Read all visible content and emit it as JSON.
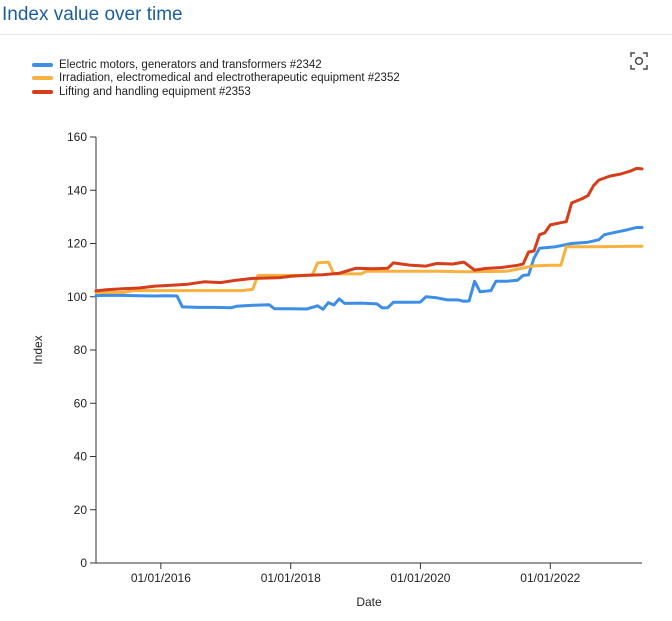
{
  "header": {
    "title": "Index value over time"
  },
  "focus_button": {
    "icon": "focus-mode-icon"
  },
  "chart_data": {
    "type": "line",
    "xlabel": "Date",
    "ylabel": "Index",
    "ylim": [
      0,
      160
    ],
    "yticks": [
      0,
      20,
      40,
      60,
      80,
      100,
      120,
      140,
      160
    ],
    "xlim": [
      "2015-01-01",
      "2023-06-01"
    ],
    "xticks": [
      {
        "value": "2016-01-01",
        "label": "01/01/2016"
      },
      {
        "value": "2018-01-01",
        "label": "01/01/2018"
      },
      {
        "value": "2020-01-01",
        "label": "01/01/2020"
      },
      {
        "value": "2022-01-01",
        "label": "01/01/2022"
      }
    ],
    "grid": false,
    "legend_position": "top-left",
    "series": [
      {
        "name": "Electric motors, generators and transformers #2342",
        "color": "#3e8ee8",
        "points": [
          [
            "2015-01-01",
            100.4
          ],
          [
            "2015-03-01",
            100.6
          ],
          [
            "2015-06-01",
            100.5
          ],
          [
            "2015-09-01",
            100.4
          ],
          [
            "2015-12-01",
            100.3
          ],
          [
            "2016-02-01",
            100.4
          ],
          [
            "2016-04-01",
            100.3
          ],
          [
            "2016-05-01",
            96.2
          ],
          [
            "2016-08-01",
            96.0
          ],
          [
            "2016-11-01",
            96.0
          ],
          [
            "2017-02-01",
            95.9
          ],
          [
            "2017-03-01",
            96.4
          ],
          [
            "2017-06-01",
            96.8
          ],
          [
            "2017-09-01",
            97.0
          ],
          [
            "2017-10-01",
            95.5
          ],
          [
            "2018-01-01",
            95.5
          ],
          [
            "2018-04-01",
            95.4
          ],
          [
            "2018-06-01",
            96.6
          ],
          [
            "2018-07-01",
            95.3
          ],
          [
            "2018-08-01",
            97.8
          ],
          [
            "2018-09-01",
            96.9
          ],
          [
            "2018-10-01",
            99.2
          ],
          [
            "2018-11-01",
            97.5
          ],
          [
            "2019-02-01",
            97.6
          ],
          [
            "2019-05-01",
            97.3
          ],
          [
            "2019-06-01",
            95.8
          ],
          [
            "2019-07-01",
            95.9
          ],
          [
            "2019-08-01",
            97.9
          ],
          [
            "2019-11-01",
            97.9
          ],
          [
            "2020-01-01",
            98.0
          ],
          [
            "2020-02-01",
            100.0
          ],
          [
            "2020-04-01",
            99.6
          ],
          [
            "2020-06-01",
            98.8
          ],
          [
            "2020-08-01",
            98.8
          ],
          [
            "2020-09-01",
            98.3
          ],
          [
            "2020-10-01",
            98.4
          ],
          [
            "2020-11-01",
            105.8
          ],
          [
            "2020-12-01",
            101.9
          ],
          [
            "2021-02-01",
            102.3
          ],
          [
            "2021-03-01",
            105.8
          ],
          [
            "2021-05-01",
            105.8
          ],
          [
            "2021-07-01",
            106.2
          ],
          [
            "2021-08-01",
            108.0
          ],
          [
            "2021-09-01",
            108.2
          ],
          [
            "2021-10-01",
            114.5
          ],
          [
            "2021-11-01",
            118.2
          ],
          [
            "2022-02-01",
            118.8
          ],
          [
            "2022-05-01",
            120.0
          ],
          [
            "2022-08-01",
            120.5
          ],
          [
            "2022-10-01",
            121.4
          ],
          [
            "2022-11-01",
            123.3
          ],
          [
            "2023-01-01",
            124.2
          ],
          [
            "2023-03-01",
            125.0
          ],
          [
            "2023-05-01",
            126.0
          ],
          [
            "2023-06-01",
            126.0
          ]
        ]
      },
      {
        "name": "Irradiation, electromedical and electrotherapeutic equipment #2352",
        "color": "#f7b13e",
        "points": [
          [
            "2015-01-01",
            101.6
          ],
          [
            "2015-06-01",
            101.6
          ],
          [
            "2015-08-01",
            102.3
          ],
          [
            "2016-06-01",
            102.3
          ],
          [
            "2017-04-01",
            102.3
          ],
          [
            "2017-06-01",
            102.8
          ],
          [
            "2017-07-01",
            108.0
          ],
          [
            "2018-05-01",
            108.0
          ],
          [
            "2018-06-01",
            112.7
          ],
          [
            "2018-08-01",
            113.0
          ],
          [
            "2018-09-01",
            108.6
          ],
          [
            "2019-02-01",
            108.6
          ],
          [
            "2019-03-01",
            109.6
          ],
          [
            "2020-04-01",
            109.6
          ],
          [
            "2020-09-01",
            109.4
          ],
          [
            "2021-02-01",
            109.5
          ],
          [
            "2021-05-01",
            109.6
          ],
          [
            "2021-10-01",
            111.6
          ],
          [
            "2022-01-01",
            111.8
          ],
          [
            "2022-03-01",
            111.8
          ],
          [
            "2022-04-01",
            118.8
          ],
          [
            "2022-09-01",
            118.8
          ],
          [
            "2023-06-01",
            119.0
          ]
        ]
      },
      {
        "name": "Lifting and handling equipment #2353",
        "color": "#d63d1a",
        "points": [
          [
            "2015-01-01",
            102.2
          ],
          [
            "2015-03-01",
            102.6
          ],
          [
            "2015-06-01",
            103.0
          ],
          [
            "2015-09-01",
            103.3
          ],
          [
            "2015-12-01",
            104.0
          ],
          [
            "2016-03-01",
            104.3
          ],
          [
            "2016-06-01",
            104.7
          ],
          [
            "2016-09-01",
            105.6
          ],
          [
            "2016-12-01",
            105.3
          ],
          [
            "2017-03-01",
            106.2
          ],
          [
            "2017-06-01",
            106.9
          ],
          [
            "2017-08-01",
            107.0
          ],
          [
            "2017-11-01",
            107.2
          ],
          [
            "2018-01-01",
            107.7
          ],
          [
            "2018-04-01",
            108.1
          ],
          [
            "2018-07-01",
            108.3
          ],
          [
            "2018-10-01",
            108.8
          ],
          [
            "2019-01-01",
            110.7
          ],
          [
            "2019-04-01",
            110.5
          ],
          [
            "2019-07-01",
            110.7
          ],
          [
            "2019-08-01",
            112.7
          ],
          [
            "2019-11-01",
            111.9
          ],
          [
            "2020-02-01",
            111.5
          ],
          [
            "2020-04-01",
            112.5
          ],
          [
            "2020-07-01",
            112.3
          ],
          [
            "2020-09-01",
            113.0
          ],
          [
            "2020-11-01",
            110.0
          ],
          [
            "2021-01-01",
            110.6
          ],
          [
            "2021-04-01",
            111.0
          ],
          [
            "2021-07-01",
            111.8
          ],
          [
            "2021-08-01",
            112.3
          ],
          [
            "2021-09-01",
            116.8
          ],
          [
            "2021-10-01",
            117.2
          ],
          [
            "2021-11-01",
            123.3
          ],
          [
            "2021-12-01",
            124.0
          ],
          [
            "2022-01-01",
            127.0
          ],
          [
            "2022-03-01",
            127.8
          ],
          [
            "2022-04-01",
            128.2
          ],
          [
            "2022-05-01",
            135.2
          ],
          [
            "2022-07-01",
            136.9
          ],
          [
            "2022-08-01",
            138.0
          ],
          [
            "2022-09-01",
            141.7
          ],
          [
            "2022-10-01",
            143.8
          ],
          [
            "2022-12-01",
            145.3
          ],
          [
            "2023-02-01",
            146.1
          ],
          [
            "2023-04-01",
            147.3
          ],
          [
            "2023-05-01",
            148.2
          ],
          [
            "2023-06-01",
            148.0
          ]
        ]
      }
    ]
  }
}
